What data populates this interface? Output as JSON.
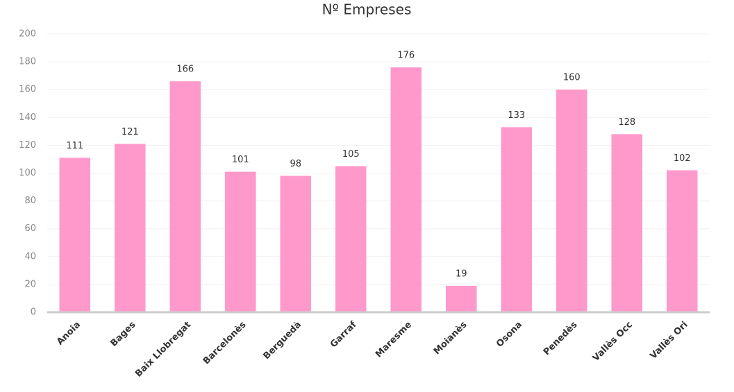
{
  "chart_data": {
    "type": "bar",
    "title": "Nº Empreses",
    "categories": [
      "Anoia",
      "Bages",
      "Baix Llobregat",
      "Barcelonès",
      "Berguedà",
      "Garraf",
      "Maresme",
      "Moianès",
      "Osona",
      "Penedès",
      "Vallès Occ",
      "Vallès Ori"
    ],
    "values": [
      111,
      121,
      166,
      101,
      98,
      105,
      176,
      19,
      133,
      160,
      128,
      102
    ],
    "color": "#ff99cc",
    "ylim": [
      0,
      200
    ],
    "yticks": [
      0,
      20,
      40,
      60,
      80,
      100,
      120,
      140,
      160,
      180,
      200
    ],
    "grid": true
  }
}
